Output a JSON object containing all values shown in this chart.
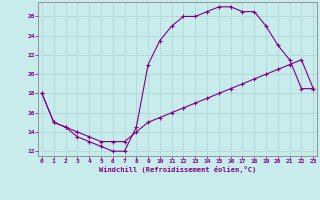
{
  "xlabel": "Windchill (Refroidissement éolien,°C)",
  "bg_color": "#c8ecec",
  "line_color": "#800080",
  "grid_color": "#b0d8d8",
  "hours": [
    0,
    1,
    2,
    3,
    4,
    5,
    6,
    7,
    8,
    9,
    10,
    11,
    12,
    13,
    14,
    15,
    16,
    17,
    18,
    19,
    20,
    21,
    22,
    23
  ],
  "curve1": [
    18,
    15,
    14.5,
    13.5,
    13.0,
    12.5,
    12.0,
    12.0,
    14.5,
    21.0,
    23.5,
    25.0,
    26.0,
    26.0,
    26.5,
    27.0,
    27.0,
    26.5,
    26.5,
    25.0,
    23.0,
    21.5,
    18.5,
    18.5
  ],
  "curve2": [
    18,
    15,
    14.5,
    14.0,
    13.5,
    13.0,
    13.0,
    13.0,
    14.0,
    15.0,
    15.5,
    16.0,
    16.5,
    17.0,
    17.5,
    18.0,
    18.5,
    19.0,
    19.5,
    20.0,
    20.5,
    21.0,
    21.5,
    18.5
  ],
  "ylim": [
    11.5,
    27.5
  ],
  "xlim": [
    -0.3,
    23.3
  ],
  "yticks": [
    12,
    14,
    16,
    18,
    20,
    22,
    24,
    26
  ],
  "xticks": [
    0,
    1,
    2,
    3,
    4,
    5,
    6,
    7,
    8,
    9,
    10,
    11,
    12,
    13,
    14,
    15,
    16,
    17,
    18,
    19,
    20,
    21,
    22,
    23
  ]
}
